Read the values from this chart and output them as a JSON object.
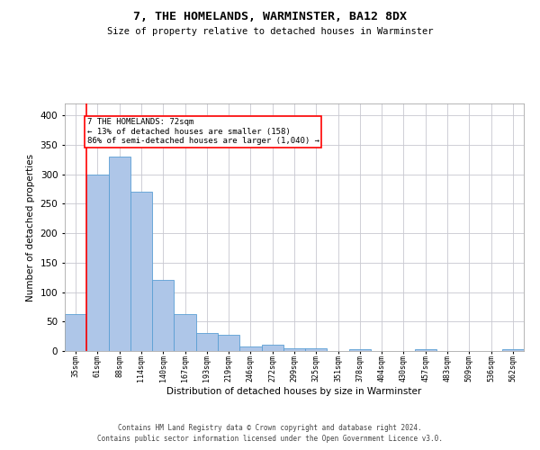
{
  "title": "7, THE HOMELANDS, WARMINSTER, BA12 8DX",
  "subtitle": "Size of property relative to detached houses in Warminster",
  "xlabel": "Distribution of detached houses by size in Warminster",
  "ylabel": "Number of detached properties",
  "bar_color": "#aec6e8",
  "bar_edge_color": "#5a9fd4",
  "categories": [
    "35sqm",
    "61sqm",
    "88sqm",
    "114sqm",
    "140sqm",
    "167sqm",
    "193sqm",
    "219sqm",
    "246sqm",
    "272sqm",
    "299sqm",
    "325sqm",
    "351sqm",
    "378sqm",
    "404sqm",
    "430sqm",
    "457sqm",
    "483sqm",
    "509sqm",
    "536sqm",
    "562sqm"
  ],
  "values": [
    62,
    300,
    330,
    270,
    120,
    63,
    30,
    27,
    7,
    10,
    5,
    4,
    0,
    3,
    0,
    0,
    3,
    0,
    0,
    0,
    3
  ],
  "ylim": [
    0,
    420
  ],
  "yticks": [
    0,
    50,
    100,
    150,
    200,
    250,
    300,
    350,
    400
  ],
  "vline_x": 0.5,
  "annotation_title": "7 THE HOMELANDS: 72sqm",
  "annotation_line1": "← 13% of detached houses are smaller (158)",
  "annotation_line2": "86% of semi-detached houses are larger (1,040) →",
  "annotation_box_color": "white",
  "annotation_border_color": "red",
  "vline_color": "red",
  "grid_color": "#c8c8d0",
  "background_color": "white",
  "footer_line1": "Contains HM Land Registry data © Crown copyright and database right 2024.",
  "footer_line2": "Contains public sector information licensed under the Open Government Licence v3.0."
}
